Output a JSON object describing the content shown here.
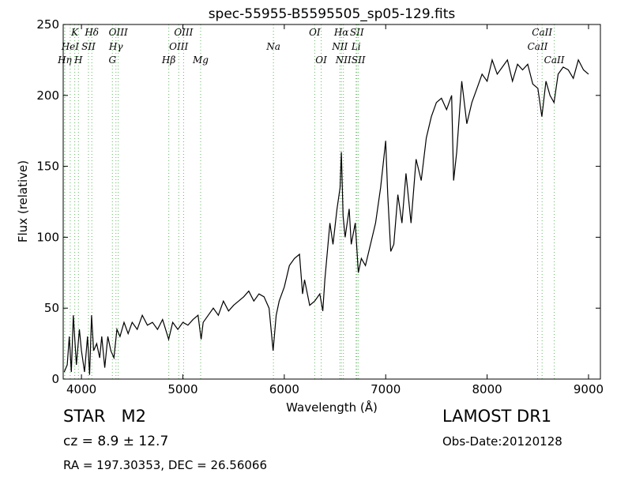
{
  "chart_data": {
    "type": "line",
    "title": "spec-55955-B5595505_sp05-129.fits",
    "x_label": "Wavelength (Å)",
    "y_label": "Flux (relative)",
    "color": "#000000",
    "marker_color": "#5cb85c",
    "xlim": [
      3820,
      9117
    ],
    "ylim": [
      0,
      250
    ],
    "xticks": [
      4000,
      5000,
      6000,
      7000,
      8000,
      9000
    ],
    "yticks": [
      0,
      50,
      100,
      150,
      200,
      250
    ],
    "x": [
      3830,
      3860,
      3880,
      3900,
      3920,
      3950,
      3980,
      4000,
      4030,
      4060,
      4080,
      4100,
      4120,
      4150,
      4180,
      4200,
      4230,
      4260,
      4290,
      4320,
      4350,
      4380,
      4420,
      4460,
      4500,
      4550,
      4600,
      4650,
      4700,
      4750,
      4800,
      4860,
      4900,
      4950,
      5000,
      5050,
      5100,
      5150,
      5180,
      5200,
      5250,
      5300,
      5350,
      5400,
      5450,
      5500,
      5550,
      5600,
      5650,
      5700,
      5750,
      5800,
      5850,
      5890,
      5920,
      5950,
      6000,
      6050,
      6100,
      6150,
      6180,
      6200,
      6250,
      6300,
      6350,
      6380,
      6400,
      6450,
      6480,
      6520,
      6550,
      6563,
      6580,
      6600,
      6640,
      6660,
      6700,
      6730,
      6760,
      6800,
      6850,
      6900,
      6950,
      7000,
      7020,
      7050,
      7080,
      7120,
      7160,
      7200,
      7250,
      7300,
      7350,
      7400,
      7450,
      7500,
      7550,
      7600,
      7650,
      7670,
      7700,
      7750,
      7800,
      7850,
      7900,
      7950,
      8000,
      8050,
      8100,
      8150,
      8200,
      8250,
      8300,
      8350,
      8400,
      8450,
      8500,
      8540,
      8580,
      8620,
      8660,
      8700,
      8750,
      8800,
      8850,
      8900,
      8950,
      9000
    ],
    "values": [
      5,
      10,
      30,
      5,
      45,
      10,
      35,
      20,
      5,
      30,
      3,
      45,
      20,
      25,
      15,
      30,
      8,
      30,
      20,
      15,
      35,
      30,
      40,
      32,
      40,
      35,
      45,
      38,
      40,
      35,
      42,
      28,
      40,
      35,
      40,
      38,
      42,
      45,
      28,
      40,
      45,
      50,
      45,
      55,
      48,
      52,
      55,
      58,
      62,
      55,
      60,
      58,
      50,
      20,
      45,
      55,
      65,
      80,
      85,
      88,
      60,
      70,
      52,
      55,
      60,
      48,
      70,
      110,
      95,
      120,
      135,
      160,
      115,
      100,
      120,
      95,
      110,
      75,
      85,
      80,
      95,
      110,
      135,
      168,
      130,
      90,
      95,
      130,
      110,
      145,
      110,
      155,
      140,
      170,
      185,
      195,
      198,
      190,
      200,
      140,
      160,
      210,
      180,
      195,
      205,
      215,
      210,
      225,
      215,
      220,
      225,
      210,
      222,
      218,
      222,
      208,
      205,
      185,
      210,
      200,
      195,
      215,
      220,
      218,
      212,
      225,
      218,
      215
    ],
    "annotations": [
      {
        "label": "Hη",
        "wavelength": 3835
      },
      {
        "label": "HeI",
        "wavelength": 3889
      },
      {
        "label": "K",
        "wavelength": 3934
      },
      {
        "label": "H",
        "wavelength": 3970
      },
      {
        "label": "SII",
        "wavelength": 4069
      },
      {
        "label": "Hδ",
        "wavelength": 4102
      },
      {
        "label": "G",
        "wavelength": 4305
      },
      {
        "label": "Hγ",
        "wavelength": 4340
      },
      {
        "label": "OIII",
        "wavelength": 4363
      },
      {
        "label": "Hβ",
        "wavelength": 4861
      },
      {
        "label": "OIII",
        "wavelength": 4959
      },
      {
        "label": "OIII",
        "wavelength": 5007
      },
      {
        "label": "Mg",
        "wavelength": 5175
      },
      {
        "label": "Na",
        "wavelength": 5893
      },
      {
        "label": "OI",
        "wavelength": 6300
      },
      {
        "label": "OI",
        "wavelength": 6364
      },
      {
        "label": "NII",
        "wavelength": 6548
      },
      {
        "label": "Hα",
        "wavelength": 6563
      },
      {
        "label": "NII",
        "wavelength": 6583
      },
      {
        "label": "Li",
        "wavelength": 6708
      },
      {
        "label": "SII",
        "wavelength": 6716
      },
      {
        "label": "SII",
        "wavelength": 6731
      },
      {
        "label": "CaII",
        "wavelength": 8498
      },
      {
        "label": "CaII",
        "wavelength": 8542
      },
      {
        "label": "CaII",
        "wavelength": 8662
      }
    ],
    "object_class": "STAR   M2",
    "redshift": "cz = 8.9 ± 12.7",
    "coordinates": "RA = 197.30353, DEC = 26.56066",
    "survey": "LAMOST DR1",
    "obs_date": "Obs-Date:20120128"
  }
}
